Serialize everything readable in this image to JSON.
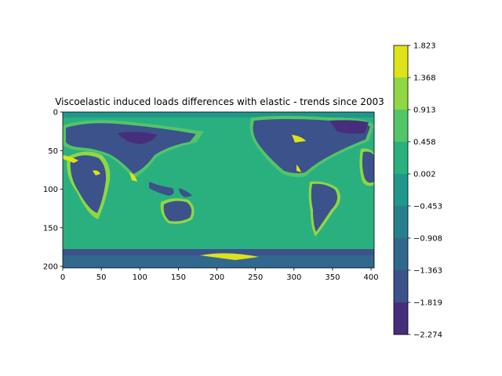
{
  "chart_data": [
    {
      "type": "heatmap",
      "title": "Viscoelastic induced loads differences with elastic - trends since 2003",
      "xlabel": "",
      "ylabel": "",
      "xlim": [
        0,
        404
      ],
      "ylim": [
        202,
        0
      ],
      "x_ticks": [
        "0",
        "50",
        "100",
        "150",
        "200",
        "250",
        "300",
        "350",
        "400"
      ],
      "y_ticks": [
        "0",
        "50",
        "100",
        "150",
        "200"
      ],
      "grid": false,
      "description_values": "global gridded field; ocean near 0, continental coastlines positive (green/yellow) and interiors negative (purple)",
      "colorbar": {
        "levels": [
          "1.823",
          "1.368",
          "0.913",
          "0.458",
          "0.002",
          "−0.453",
          "−0.908",
          "−1.363",
          "−1.819",
          "−2.274"
        ],
        "level_values": [
          1.823,
          1.368,
          0.913,
          0.458,
          0.002,
          -0.453,
          -0.908,
          -1.363,
          -1.819,
          -2.274
        ],
        "colors": [
          "#dde318",
          "#8fd744",
          "#52c569",
          "#2ab07f",
          "#1f988b",
          "#277f8e",
          "#31688e",
          "#3b528b",
          "#472e7c",
          "#481769"
        ]
      }
    }
  ]
}
